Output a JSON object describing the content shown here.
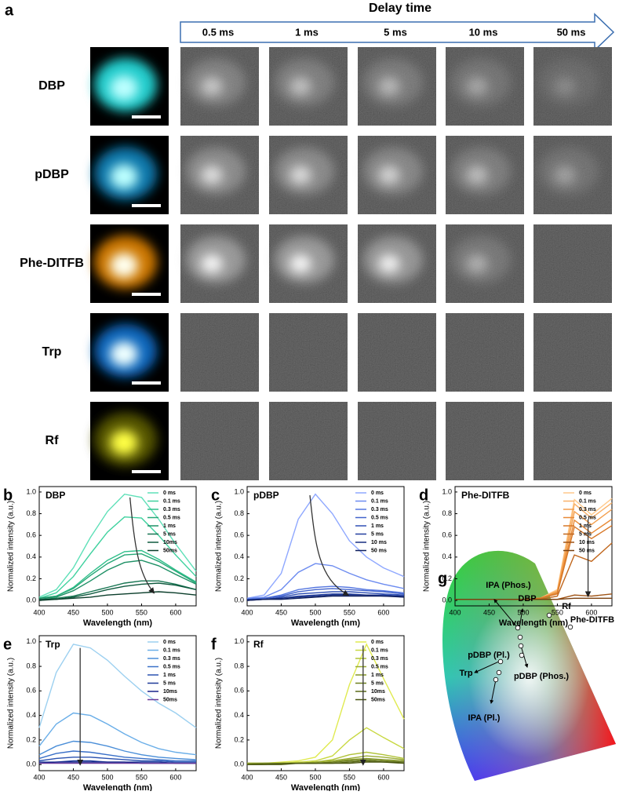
{
  "figure": {
    "panel_a_label": "a",
    "header": "Delay time",
    "delays": [
      "0.5 ms",
      "1 ms",
      "5 ms",
      "10 ms",
      "50 ms"
    ],
    "rows": [
      "DBP",
      "pDBP",
      "Phe-DITFB",
      "Trp",
      "Rf"
    ],
    "panel_g_label": "g",
    "cie_labels": [
      "IPA (Phos.)",
      "DBP",
      "Rf",
      "Phe-DITFB",
      "pDBP (Pl.)",
      "Trp",
      "pDBP (Phos.)",
      "IPA (Pl.)"
    ]
  },
  "chart_data": [
    {
      "type": "line",
      "panel": "b",
      "title": "DBP",
      "x_label": "Wavelength (nm)",
      "y_label": "Normalized intensity (a.u.)",
      "x": [
        400,
        425,
        450,
        475,
        500,
        525,
        550,
        575,
        600,
        630
      ],
      "xlim": [
        400,
        630
      ],
      "xticks": [
        400,
        450,
        500,
        550,
        600
      ],
      "ylim": [
        -0.05,
        1.05
      ],
      "yticks": [
        {
          "value": 0,
          "label": "0.0"
        },
        0.2,
        0.4,
        0.6,
        0.8,
        {
          "value": 1,
          "label": "1.0"
        }
      ],
      "series": [
        {
          "name": "0 ms",
          "color": "#5fe0b8",
          "values": [
            0.03,
            0.1,
            0.3,
            0.58,
            0.82,
            0.98,
            0.95,
            0.75,
            0.52,
            0.27
          ]
        },
        {
          "name": "0.1 ms",
          "color": "#3ed19e",
          "values": [
            0.02,
            0.07,
            0.22,
            0.43,
            0.63,
            0.77,
            0.76,
            0.6,
            0.42,
            0.22
          ]
        },
        {
          "name": "0.3 ms",
          "color": "#2fbf8a",
          "values": [
            0.02,
            0.04,
            0.12,
            0.25,
            0.37,
            0.45,
            0.46,
            0.38,
            0.28,
            0.17
          ]
        },
        {
          "name": "0.5 ms",
          "color": "#26a877",
          "values": [
            0.02,
            0.04,
            0.11,
            0.23,
            0.34,
            0.42,
            0.43,
            0.36,
            0.27,
            0.16
          ]
        },
        {
          "name": "1 ms",
          "color": "#1e9065",
          "values": [
            0.02,
            0.03,
            0.09,
            0.18,
            0.28,
            0.35,
            0.37,
            0.32,
            0.24,
            0.15
          ]
        },
        {
          "name": "5 ms",
          "color": "#177552",
          "values": [
            0.01,
            0.02,
            0.04,
            0.08,
            0.12,
            0.16,
            0.18,
            0.18,
            0.15,
            0.1
          ]
        },
        {
          "name": "10ms",
          "color": "#0f5a3f",
          "values": [
            0.01,
            0.01,
            0.03,
            0.06,
            0.1,
            0.13,
            0.15,
            0.16,
            0.14,
            0.1
          ]
        },
        {
          "name": "50ms",
          "color": "#0a3d2a",
          "values": [
            0.0,
            0.01,
            0.02,
            0.03,
            0.05,
            0.06,
            0.07,
            0.08,
            0.07,
            0.05
          ]
        }
      ]
    },
    {
      "type": "line",
      "panel": "c",
      "title": "pDBP",
      "x_label": "Wavelength (nm)",
      "y_label": "Normalized intensity (a.u.)",
      "x": [
        400,
        425,
        450,
        475,
        500,
        525,
        550,
        575,
        600,
        630
      ],
      "xlim": [
        400,
        630
      ],
      "xticks": [
        400,
        450,
        500,
        550,
        600
      ],
      "ylim": [
        -0.05,
        1.05
      ],
      "yticks": [
        {
          "value": 0,
          "label": "0.0"
        },
        0.2,
        0.4,
        0.6,
        0.8,
        {
          "value": 1,
          "label": "1.0"
        }
      ],
      "series": [
        {
          "name": "0 ms",
          "color": "#8fa8ff",
          "values": [
            0.02,
            0.05,
            0.25,
            0.75,
            0.98,
            0.8,
            0.55,
            0.4,
            0.3,
            0.22
          ]
        },
        {
          "name": "0.1 ms",
          "color": "#6d8cf0",
          "values": [
            0.02,
            0.03,
            0.1,
            0.26,
            0.34,
            0.32,
            0.25,
            0.19,
            0.15,
            0.11
          ]
        },
        {
          "name": "0.3 ms",
          "color": "#5577e0",
          "values": [
            0.01,
            0.02,
            0.05,
            0.1,
            0.12,
            0.13,
            0.12,
            0.1,
            0.09,
            0.07
          ]
        },
        {
          "name": "0.5 ms",
          "color": "#4263cc",
          "values": [
            0.01,
            0.02,
            0.04,
            0.08,
            0.1,
            0.11,
            0.1,
            0.09,
            0.08,
            0.06
          ]
        },
        {
          "name": "1 ms",
          "color": "#3050b5",
          "values": [
            0.01,
            0.01,
            0.03,
            0.06,
            0.07,
            0.08,
            0.08,
            0.07,
            0.06,
            0.05
          ]
        },
        {
          "name": "5 ms",
          "color": "#223e9e",
          "values": [
            0.01,
            0.01,
            0.02,
            0.04,
            0.05,
            0.06,
            0.06,
            0.05,
            0.05,
            0.04
          ]
        },
        {
          "name": "10 ms",
          "color": "#172d80",
          "values": [
            0.0,
            0.01,
            0.02,
            0.03,
            0.04,
            0.05,
            0.05,
            0.05,
            0.04,
            0.04
          ]
        },
        {
          "name": "50 ms",
          "color": "#0f1f5e",
          "values": [
            0.0,
            0.01,
            0.01,
            0.02,
            0.03,
            0.04,
            0.04,
            0.04,
            0.04,
            0.03
          ]
        }
      ]
    },
    {
      "type": "line",
      "panel": "d",
      "title": "Phe-DITFB",
      "x_label": "Wavelength (nm)",
      "y_label": "Normalized intensity (a.u.)",
      "x": [
        400,
        425,
        450,
        475,
        500,
        525,
        550,
        575,
        600,
        630
      ],
      "xlim": [
        400,
        630
      ],
      "xticks": [
        400,
        450,
        500,
        550,
        600
      ],
      "ylim": [
        -0.05,
        1.05
      ],
      "yticks": [
        {
          "value": 0,
          "label": "0.0"
        },
        0.2,
        0.4,
        0.6,
        0.8,
        {
          "value": 1,
          "label": "1.0"
        }
      ],
      "series": [
        {
          "name": "0 ms",
          "color": "#ffc98a",
          "values": [
            0.01,
            0.01,
            0.01,
            0.01,
            0.01,
            0.02,
            0.1,
            0.93,
            0.79,
            0.94
          ]
        },
        {
          "name": "0.1 ms",
          "color": "#f9b26a",
          "values": [
            0.01,
            0.01,
            0.01,
            0.01,
            0.01,
            0.02,
            0.09,
            0.89,
            0.76,
            0.9
          ]
        },
        {
          "name": "0.3 ms",
          "color": "#f29e4c",
          "values": [
            0.01,
            0.01,
            0.01,
            0.01,
            0.01,
            0.02,
            0.08,
            0.82,
            0.7,
            0.84
          ]
        },
        {
          "name": "0.5 ms",
          "color": "#e88a36",
          "values": [
            0.01,
            0.01,
            0.01,
            0.01,
            0.01,
            0.02,
            0.07,
            0.74,
            0.62,
            0.75
          ]
        },
        {
          "name": "1 ms",
          "color": "#d77726",
          "values": [
            0.01,
            0.01,
            0.01,
            0.01,
            0.01,
            0.02,
            0.06,
            0.68,
            0.57,
            0.69
          ]
        },
        {
          "name": "5 ms",
          "color": "#c0661c",
          "values": [
            0.01,
            0.01,
            0.01,
            0.01,
            0.01,
            0.01,
            0.04,
            0.42,
            0.36,
            0.53
          ]
        },
        {
          "name": "10 ms",
          "color": "#a05416",
          "values": [
            0.01,
            0.01,
            0.01,
            0.01,
            0.01,
            0.01,
            0.01,
            0.05,
            0.04,
            0.06
          ]
        },
        {
          "name": "50 ms",
          "color": "#7a4010",
          "values": [
            0.01,
            0.01,
            0.01,
            0.01,
            0.01,
            0.01,
            0.01,
            0.02,
            0.02,
            0.02
          ]
        }
      ]
    },
    {
      "type": "line",
      "panel": "e",
      "title": "Trp",
      "x_label": "Wavelength (nm)",
      "y_label": "Normalized intensity (a.u.)",
      "x": [
        400,
        425,
        450,
        475,
        500,
        525,
        550,
        575,
        600,
        630
      ],
      "xlim": [
        400,
        630
      ],
      "xticks": [
        400,
        450,
        500,
        550,
        600
      ],
      "ylim": [
        -0.05,
        1.05
      ],
      "yticks": [
        {
          "value": 0,
          "label": "0.0"
        },
        0.2,
        0.4,
        0.6,
        0.8,
        {
          "value": 1,
          "label": "1.0"
        }
      ],
      "series": [
        {
          "name": "0 ms",
          "color": "#9cd0f0",
          "values": [
            0.3,
            0.75,
            0.98,
            0.95,
            0.85,
            0.72,
            0.6,
            0.5,
            0.42,
            0.3
          ]
        },
        {
          "name": "0.1 ms",
          "color": "#6aaee8",
          "values": [
            0.15,
            0.33,
            0.42,
            0.4,
            0.33,
            0.25,
            0.18,
            0.13,
            0.1,
            0.08
          ]
        },
        {
          "name": "0.3 ms",
          "color": "#4a8ed8",
          "values": [
            0.08,
            0.15,
            0.19,
            0.18,
            0.15,
            0.11,
            0.08,
            0.06,
            0.05,
            0.04
          ]
        },
        {
          "name": "0.5 ms",
          "color": "#3a70c8",
          "values": [
            0.05,
            0.09,
            0.11,
            0.1,
            0.08,
            0.06,
            0.05,
            0.04,
            0.03,
            0.03
          ]
        },
        {
          "name": "1 ms",
          "color": "#2a52b0",
          "values": [
            0.03,
            0.05,
            0.06,
            0.06,
            0.05,
            0.04,
            0.03,
            0.03,
            0.02,
            0.02
          ]
        },
        {
          "name": "5 ms",
          "color": "#1e3a98",
          "values": [
            0.02,
            0.02,
            0.03,
            0.03,
            0.02,
            0.02,
            0.02,
            0.02,
            0.01,
            0.01
          ]
        },
        {
          "name": "10ms",
          "color": "#18248a",
          "values": [
            0.01,
            0.02,
            0.02,
            0.02,
            0.02,
            0.02,
            0.01,
            0.01,
            0.01,
            0.01
          ]
        },
        {
          "name": "50ms",
          "color": "#6a3a9a",
          "values": [
            0.01,
            0.01,
            0.01,
            0.01,
            0.01,
            0.01,
            0.01,
            0.01,
            0.01,
            0.01
          ]
        }
      ]
    },
    {
      "type": "line",
      "panel": "f",
      "title": "Rf",
      "x_label": "Wavelength (nm)",
      "y_label": "Normalized intensity (a.u.)",
      "x": [
        400,
        425,
        450,
        475,
        500,
        525,
        550,
        575,
        600,
        630
      ],
      "xlim": [
        400,
        630
      ],
      "xticks": [
        400,
        450,
        500,
        550,
        600
      ],
      "ylim": [
        -0.05,
        1.05
      ],
      "yticks": [
        {
          "value": 0,
          "label": "0.0"
        },
        0.2,
        0.4,
        0.6,
        0.8,
        {
          "value": 1,
          "label": "1.0"
        }
      ],
      "series": [
        {
          "name": "0 ms",
          "color": "#e0ea50",
          "values": [
            0.01,
            0.01,
            0.02,
            0.03,
            0.06,
            0.2,
            0.65,
            0.98,
            0.7,
            0.37
          ]
        },
        {
          "name": "0.1 ms",
          "color": "#c8d840",
          "values": [
            0.01,
            0.01,
            0.01,
            0.02,
            0.03,
            0.07,
            0.2,
            0.3,
            0.22,
            0.13
          ]
        },
        {
          "name": "0.3 ms",
          "color": "#b0c238",
          "values": [
            0.01,
            0.01,
            0.01,
            0.01,
            0.02,
            0.04,
            0.08,
            0.1,
            0.08,
            0.05
          ]
        },
        {
          "name": "0.5 ms",
          "color": "#9aac30",
          "values": [
            0.01,
            0.01,
            0.01,
            0.01,
            0.02,
            0.03,
            0.05,
            0.07,
            0.06,
            0.04
          ]
        },
        {
          "name": "1 ms",
          "color": "#849628",
          "values": [
            0.01,
            0.01,
            0.01,
            0.01,
            0.01,
            0.02,
            0.04,
            0.05,
            0.04,
            0.03
          ]
        },
        {
          "name": "5 ms",
          "color": "#6e8020",
          "values": [
            0.0,
            0.01,
            0.01,
            0.01,
            0.01,
            0.02,
            0.03,
            0.04,
            0.03,
            0.02
          ]
        },
        {
          "name": "10ms",
          "color": "#5a6a18",
          "values": [
            0.0,
            0.0,
            0.01,
            0.01,
            0.01,
            0.01,
            0.02,
            0.03,
            0.02,
            0.02
          ]
        },
        {
          "name": "50ms",
          "color": "#485410",
          "values": [
            0.0,
            0.0,
            0.0,
            0.01,
            0.01,
            0.01,
            0.01,
            0.02,
            0.02,
            0.01
          ]
        }
      ]
    }
  ]
}
